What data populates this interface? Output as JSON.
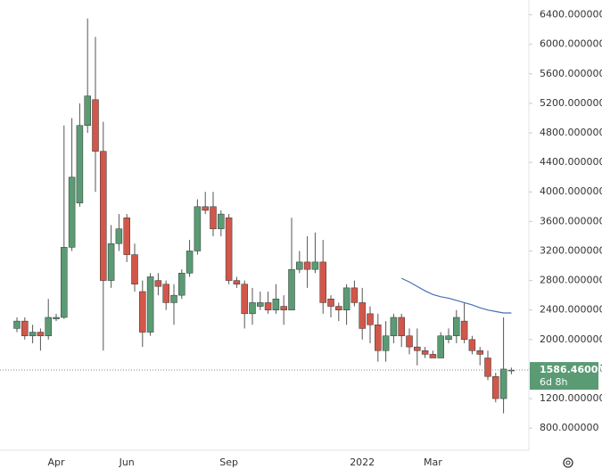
{
  "chart_data": {
    "type": "candlestick",
    "categories": [
      null,
      null,
      null,
      null,
      null,
      "Apr",
      null,
      null,
      null,
      null,
      null,
      null,
      null,
      null,
      "Jun",
      null,
      null,
      null,
      null,
      null,
      null,
      null,
      null,
      null,
      null,
      null,
      null,
      "Sep",
      null,
      null,
      null,
      null,
      null,
      null,
      null,
      null,
      null,
      null,
      null,
      null,
      null,
      null,
      null,
      null,
      "2022",
      null,
      null,
      null,
      null,
      null,
      null,
      null,
      null,
      "Mar",
      null,
      null,
      null,
      null,
      null,
      null,
      null,
      null,
      null,
      null
    ],
    "open": [
      2150,
      2250,
      2050,
      2100,
      2050,
      2280,
      2300,
      3250,
      3850,
      4900,
      5250,
      4550,
      2800,
      3300,
      3650,
      3150,
      2650,
      2100,
      2800,
      2750,
      2500,
      2600,
      2900,
      3200,
      3800,
      3800,
      3500,
      3650,
      2800,
      2750,
      2350,
      2450,
      2500,
      2400,
      2450,
      2400,
      2950,
      3050,
      2950,
      3050,
      2550,
      2450,
      2400,
      2700,
      2500,
      2350,
      2200,
      1850,
      2050,
      2300,
      2050,
      1900,
      1850,
      1800,
      1750,
      2000,
      2050,
      2250,
      2000,
      1850,
      1750,
      1500,
      1200,
      1580
    ],
    "high": [
      2300,
      2300,
      2200,
      2150,
      2550,
      2350,
      4900,
      5000,
      5200,
      6350,
      6100,
      4950,
      3550,
      3700,
      3700,
      3300,
      2800,
      2900,
      2900,
      2800,
      2750,
      2950,
      3350,
      3900,
      4000,
      4000,
      3750,
      3700,
      2850,
      2800,
      2700,
      2650,
      2650,
      2750,
      2600,
      3650,
      3200,
      3400,
      3450,
      3350,
      2600,
      2500,
      2750,
      2800,
      2700,
      2450,
      2350,
      2250,
      2350,
      2350,
      2150,
      2150,
      1900,
      1850,
      2100,
      2150,
      2400,
      2500,
      2050,
      1900,
      1850,
      1550,
      2300,
      1620
    ],
    "low": [
      2100,
      2000,
      1950,
      1850,
      2000,
      2250,
      2280,
      3200,
      3800,
      4800,
      4000,
      1850,
      2700,
      3200,
      3050,
      2650,
      1900,
      2050,
      2600,
      2400,
      2200,
      2550,
      2850,
      3150,
      3700,
      3400,
      3400,
      2750,
      2700,
      2150,
      2200,
      2400,
      2350,
      2350,
      2200,
      2400,
      2900,
      2700,
      2900,
      2350,
      2300,
      2250,
      2200,
      2450,
      2000,
      1950,
      1700,
      1700,
      1950,
      1900,
      1800,
      1650,
      1750,
      1750,
      1750,
      1950,
      1950,
      1950,
      1800,
      1650,
      1450,
      1150,
      1000,
      1530
    ],
    "close": [
      2250,
      2050,
      2100,
      2050,
      2300,
      2300,
      3250,
      4200,
      4900,
      5300,
      4550,
      2800,
      3300,
      3500,
      3150,
      2750,
      2100,
      2850,
      2720,
      2500,
      2600,
      2900,
      3200,
      3800,
      3750,
      3500,
      3700,
      2800,
      2750,
      2350,
      2500,
      2500,
      2400,
      2550,
      2400,
      2950,
      3050,
      2950,
      3050,
      2500,
      2450,
      2400,
      2700,
      2500,
      2150,
      2200,
      1850,
      2050,
      2300,
      2050,
      1900,
      1850,
      1800,
      1750,
      2050,
      2050,
      2300,
      2000,
      1850,
      1800,
      1500,
      1200,
      1600,
      1586.46
    ],
    "up_color": "#5a9b74",
    "down_color": "#d1574a",
    "ma": {
      "color": "#4a6fb5",
      "values": [
        null,
        null,
        null,
        null,
        null,
        null,
        null,
        null,
        null,
        null,
        null,
        null,
        null,
        null,
        null,
        null,
        null,
        null,
        null,
        null,
        null,
        null,
        null,
        null,
        null,
        null,
        null,
        null,
        null,
        null,
        null,
        null,
        null,
        null,
        null,
        null,
        null,
        null,
        null,
        null,
        null,
        null,
        null,
        null,
        null,
        null,
        null,
        null,
        null,
        2830,
        2780,
        2720,
        2660,
        2610,
        2580,
        2560,
        2530,
        2500,
        2470,
        2430,
        2400,
        2380,
        2360,
        2360
      ]
    },
    "ylim": [
      500,
      6600
    ],
    "yticks": [
      {
        "value": 800,
        "label": "800.000000"
      },
      {
        "value": 1200,
        "label": "1200.000000"
      },
      {
        "value": 1600,
        "label": "1600.000000"
      },
      {
        "value": 2000,
        "label": "2000.000000"
      },
      {
        "value": 2400,
        "label": "2400.000000"
      },
      {
        "value": 2800,
        "label": "2800.000000"
      },
      {
        "value": 3200,
        "label": "3200.000000"
      },
      {
        "value": 3600,
        "label": "3600.000000"
      },
      {
        "value": 4000,
        "label": "4000.000000"
      },
      {
        "value": 4400,
        "label": "4400.000000"
      },
      {
        "value": 4800,
        "label": "4800.000000"
      },
      {
        "value": 5200,
        "label": "5200.000000"
      },
      {
        "value": 5600,
        "label": "5600.000000"
      },
      {
        "value": 6000,
        "label": "6000.000000"
      },
      {
        "value": 6400,
        "label": "6400.000000"
      }
    ],
    "last_price": {
      "value": 1586.46,
      "label": "1586.460000"
    },
    "countdown": "6d 8h"
  }
}
